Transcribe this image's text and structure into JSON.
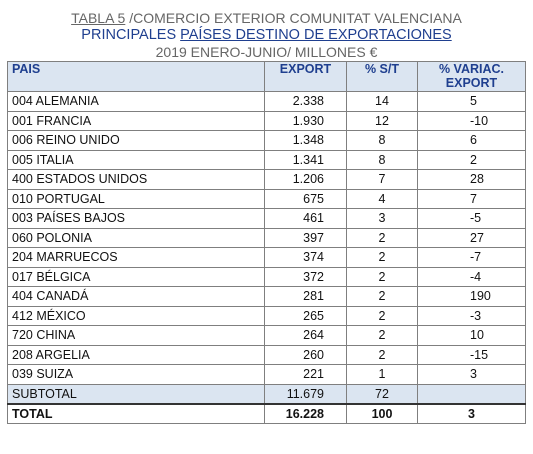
{
  "title": {
    "line1_prefix": "TABLA 5",
    "line1_rest": " /COMERCIO EXTERIOR COMUNITAT VALENCIANA",
    "line2_prefix": "PRINCIPALES ",
    "line2_underlined": "PAÍSES DESTINO DE EXPORTACIONES",
    "line3": "2019 ENERO-JUNIO/ MILLONES €"
  },
  "headers": {
    "pais": "PAIS",
    "export": "EXPORT",
    "st": "% S/T",
    "variac_line1": "% VARIAC.",
    "variac_line2": "EXPORT"
  },
  "rows": [
    {
      "pais": "004 ALEMANIA",
      "export": "2.338",
      "st": "14",
      "variac": "5"
    },
    {
      "pais": "001 FRANCIA",
      "export": "1.930",
      "st": "12",
      "variac": "-10"
    },
    {
      "pais": "006 REINO UNIDO",
      "export": "1.348",
      "st": "8",
      "variac": "6"
    },
    {
      "pais": "005 ITALIA",
      "export": "1.341",
      "st": "8",
      "variac": "2"
    },
    {
      "pais": "400 ESTADOS UNIDOS",
      "export": "1.206",
      "st": "7",
      "variac": "28"
    },
    {
      "pais": "010 PORTUGAL",
      "export": "675",
      "st": "4",
      "variac": "7"
    },
    {
      "pais": "003 PAÍSES BAJOS",
      "export": "461",
      "st": "3",
      "variac": "-5"
    },
    {
      "pais": "060 POLONIA",
      "export": "397",
      "st": "2",
      "variac": "27"
    },
    {
      "pais": "204 MARRUECOS",
      "export": "374",
      "st": "2",
      "variac": "-7"
    },
    {
      "pais": "017 BÉLGICA",
      "export": "372",
      "st": "2",
      "variac": "-4"
    },
    {
      "pais": "404 CANADÁ",
      "export": "281",
      "st": "2",
      "variac": "190"
    },
    {
      "pais": "412 MÉXICO",
      "export": "265",
      "st": "2",
      "variac": "-3"
    },
    {
      "pais": "720 CHINA",
      "export": "264",
      "st": "2",
      "variac": "10"
    },
    {
      "pais": "208 ARGELIA",
      "export": "260",
      "st": "2",
      "variac": "-15"
    },
    {
      "pais": "039 SUIZA",
      "export": "221",
      "st": "1",
      "variac": "3"
    }
  ],
  "subtotal": {
    "label": "SUBTOTAL",
    "export": "11.679",
    "st": "72",
    "variac": ""
  },
  "total": {
    "label": "TOTAL",
    "export": "16.228",
    "st": "100",
    "variac": "3"
  },
  "colors": {
    "header_bg": "#dbe5f1",
    "title_blue": "#1f3f8f"
  }
}
